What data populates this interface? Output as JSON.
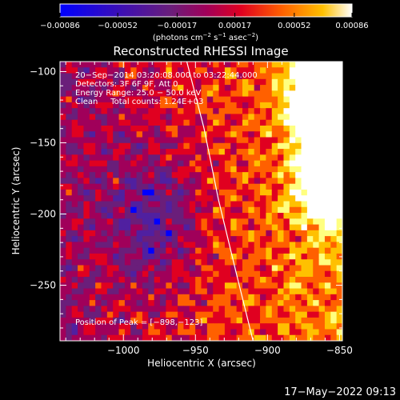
{
  "chart_data": {
    "type": "heatmap",
    "title": "Reconstructed RHESSI Image",
    "xlabel": "Heliocentric X (arcsec)",
    "ylabel": "Heliocentric Y (arcsec)",
    "xlim": [
      -1044,
      -848
    ],
    "ylim": [
      -289,
      -93
    ],
    "x_ticks": [
      -1000,
      -950,
      -900,
      -850
    ],
    "y_ticks": [
      -250,
      -200,
      -150,
      -100
    ],
    "x_tick_labels": [
      "−1000",
      "−950",
      "−900",
      "−850"
    ],
    "y_tick_labels": [
      "−250",
      "−200",
      "−150",
      "−100"
    ],
    "colorbar": {
      "ticks": [
        -0.00086,
        -0.00052,
        -0.00017,
        0.00017,
        0.00052,
        0.00086
      ],
      "tick_labels": [
        "−0.00086",
        "−0.00052",
        "−0.00017",
        "0.00017",
        "0.00052",
        "0.00086"
      ],
      "units_label": "(photons cm",
      "units_exp1": "−2",
      "units_mid": " s",
      "units_exp2": "−1",
      "units_end": " asec",
      "units_exp3": "−2",
      "units_close": ")"
    },
    "annotations": [
      "20−Sep−2014 03:20:08.000 to 03:22:44.000",
      "Detectors: 3F 6F 9F, Att 0",
      "Energy Range: 25.0 − 50.0 keV",
      "Clean     Total counts: 1.24E+03"
    ],
    "peak_annotation": "Position of Peak = [−898,−123]",
    "limb_points": [
      [
        -956,
        -93
      ],
      [
        -944,
        -140
      ],
      [
        -934,
        -190
      ],
      [
        -922,
        -240
      ],
      [
        -910,
        -289
      ]
    ],
    "grid": false,
    "colormap": [
      "#0000ff",
      "#5020a0",
      "#6a1e7a",
      "#a0005a",
      "#e00020",
      "#ff6000",
      "#ffc000",
      "#ffff80",
      "#ffffff"
    ]
  },
  "timestamp": "17−May−2022 09:13"
}
